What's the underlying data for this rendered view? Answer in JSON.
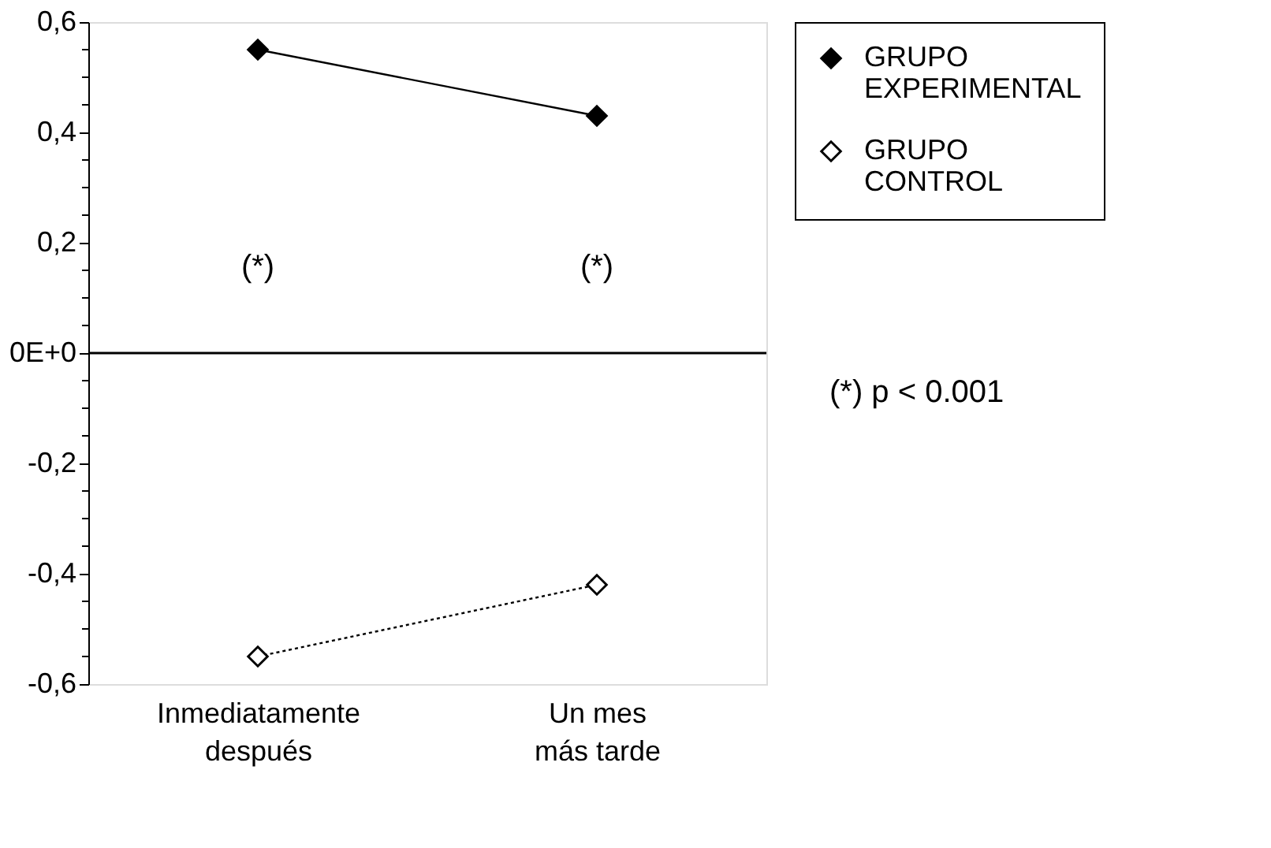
{
  "chart_data": {
    "type": "line",
    "categories": [
      "Inmediatamente\ndespués",
      "Un mes\nmás tarde"
    ],
    "series": [
      {
        "name": "GRUPO\nEXPERIMENTAL",
        "color": "#000000",
        "values": [
          0.55,
          0.43
        ],
        "marker": "diamond",
        "line_style": "solid"
      },
      {
        "name": "GRUPO\nCONTROL",
        "color": "#000000",
        "values": [
          -0.55,
          -0.42
        ],
        "marker": "diamond",
        "line_style": "dotted"
      }
    ],
    "ylim": [
      -0.6,
      0.6
    ],
    "yticks": [
      {
        "value": -0.6,
        "label": "-0,6"
      },
      {
        "value": -0.55,
        "label": null
      },
      {
        "value": -0.5,
        "label": null
      },
      {
        "value": -0.45,
        "label": null
      },
      {
        "value": -0.4,
        "label": "-0,4"
      },
      {
        "value": -0.35,
        "label": null
      },
      {
        "value": -0.3,
        "label": null
      },
      {
        "value": -0.25,
        "label": null
      },
      {
        "value": -0.2,
        "label": "-0,2"
      },
      {
        "value": -0.15,
        "label": null
      },
      {
        "value": -0.1,
        "label": null
      },
      {
        "value": -0.05,
        "label": null
      },
      {
        "value": 0,
        "label": "0E+0"
      },
      {
        "value": 0.05,
        "label": null
      },
      {
        "value": 0.1,
        "label": null
      },
      {
        "value": 0.15,
        "label": null
      },
      {
        "value": 0.2,
        "label": "0,2"
      },
      {
        "value": 0.25,
        "label": null
      },
      {
        "value": 0.3,
        "label": null
      },
      {
        "value": 0.35,
        "label": null
      },
      {
        "value": 0.4,
        "label": "0,4"
      },
      {
        "value": 0.45,
        "label": null
      },
      {
        "value": 0.5,
        "label": null
      },
      {
        "value": 0.55,
        "label": null
      },
      {
        "value": 0.6,
        "label": "0,6"
      }
    ],
    "ref_lines": [
      {
        "axis": "y",
        "value": 0,
        "color": "#000000"
      }
    ],
    "annotations": [
      "(*)",
      "(*)",
      "(*) p < 0.001"
    ],
    "grid": false,
    "legend": "right"
  }
}
